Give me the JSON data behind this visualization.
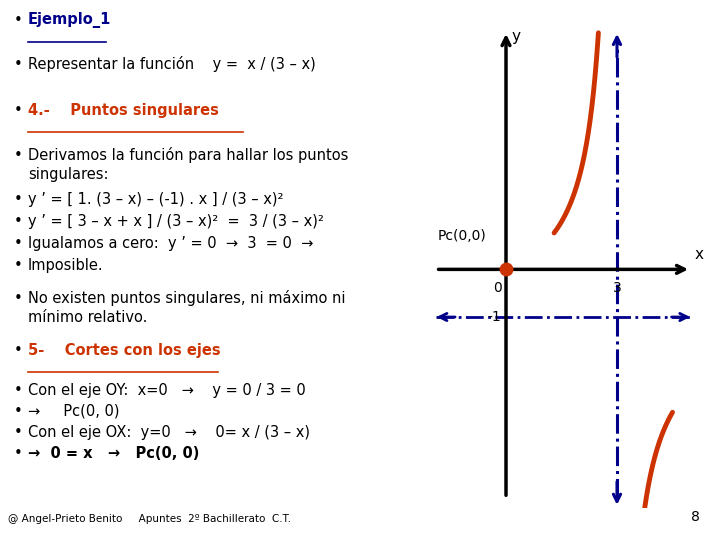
{
  "background_color": "#ffffff",
  "text_color": "#000000",
  "heading_color": "#cc3300",
  "blue_color": "#00008b",
  "curve_color": "#cc3300",
  "axis_color": "#000000",
  "origin_dot_color": "#cc3300",
  "bullet1_text": "Ejemplo_1",
  "bullet1_color": "#00008b",
  "bullet2_text": "Representar la función    y =  x / (3 – x)",
  "bullet3_text": "4.-    Puntos singulares",
  "bullet4a_text": "Derivamos la función para hallar los puntos",
  "bullet4b_text": "singulares:",
  "bullet5_text": "y ’ = [ 1. (3 – x) – (-1) . x ] / (3 – x)²",
  "bullet6_text": "y ’ = [ 3 – x + x ] / (3 – x)²  =  3 / (3 – x)²",
  "bullet7_text": "Igualamos a cero:  y ’ = 0  →  3  = 0  →",
  "bullet8_text": "Imposible.",
  "bullet9a_text": "No existen puntos singulares, ni máximo ni",
  "bullet9b_text": "mínimo relativo.",
  "bullet10_text": "5-    Cortes con los ejes",
  "bullet11_text": "Con el eje OY:  x=0   →    y = 0 / 3 = 0",
  "bullet12_text": "→     Pc(0, 0)",
  "bullet13_text": "Con el eje OX:  y=0   →    0= x / (3 – x)",
  "bullet14_text": "→  0 = x   →   Pc(0, 0)",
  "footer_text": "@ Angel-Prieto Benito     Apuntes  2º Bachillerato  C.T.",
  "page_num": "8",
  "fs": 10.5
}
